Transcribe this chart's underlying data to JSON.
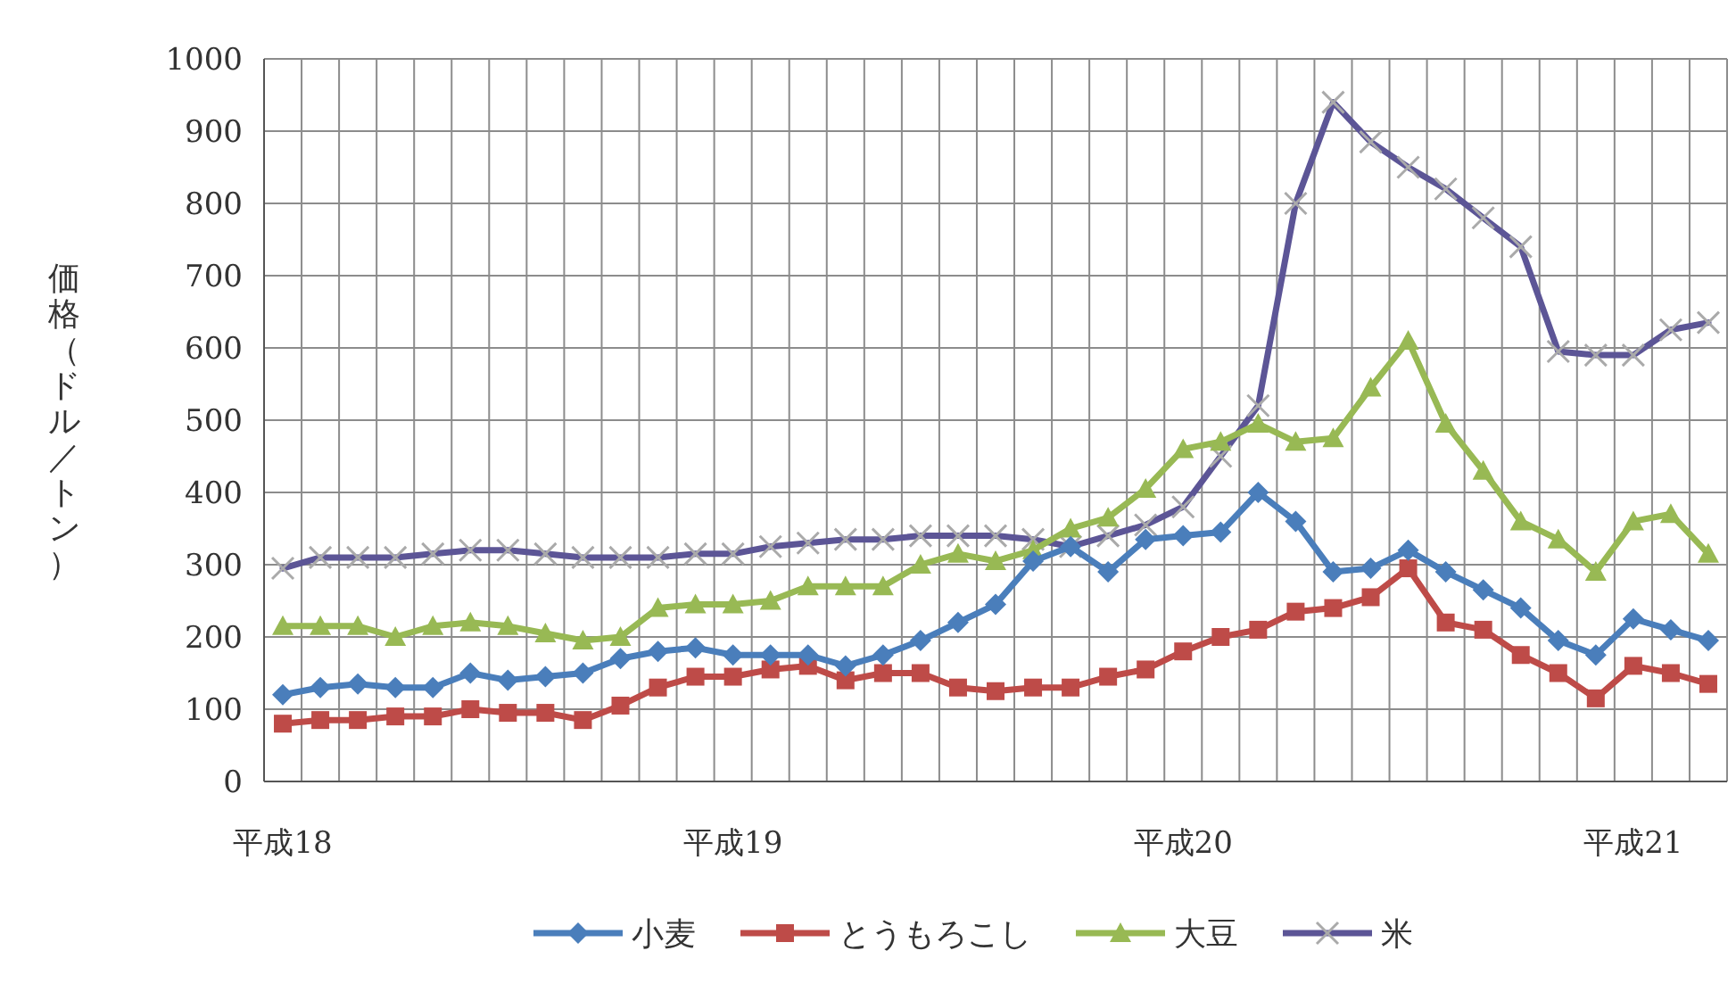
{
  "chart_data": {
    "type": "line",
    "ylabel": "価格（ドル／トン）",
    "categories": [
      "平成18",
      null,
      null,
      null,
      null,
      null,
      null,
      null,
      null,
      null,
      null,
      null,
      "平成19",
      null,
      null,
      null,
      null,
      null,
      null,
      null,
      null,
      null,
      null,
      null,
      "平成20",
      null,
      null,
      null,
      null,
      null,
      null,
      null,
      null,
      null,
      null,
      null,
      "平成21",
      null,
      null
    ],
    "ylim": [
      0,
      1000
    ],
    "yticks": [
      0,
      100,
      200,
      300,
      400,
      500,
      600,
      700,
      800,
      900,
      1000
    ],
    "grid": true,
    "legend": "bottom",
    "line_style": "solid",
    "series": [
      {
        "name": "小麦",
        "color": "#4a7ebb",
        "marker": "diamond",
        "values": [
          120,
          130,
          135,
          130,
          130,
          150,
          140,
          145,
          150,
          170,
          180,
          185,
          175,
          175,
          175,
          160,
          175,
          195,
          220,
          245,
          305,
          325,
          290,
          335,
          340,
          345,
          400,
          360,
          290,
          295,
          320,
          290,
          265,
          240,
          195,
          175,
          225,
          210,
          195
        ]
      },
      {
        "name": "とうもろこし",
        "color": "#be4b48",
        "marker": "square",
        "values": [
          80,
          85,
          85,
          90,
          90,
          100,
          95,
          95,
          85,
          105,
          130,
          145,
          145,
          155,
          160,
          140,
          150,
          150,
          130,
          125,
          130,
          130,
          145,
          155,
          180,
          200,
          210,
          235,
          240,
          255,
          295,
          220,
          210,
          175,
          150,
          115,
          160,
          150,
          135
        ]
      },
      {
        "name": "大豆",
        "color": "#98b954",
        "marker": "triangle",
        "values": [
          215,
          215,
          215,
          200,
          215,
          220,
          215,
          205,
          195,
          200,
          240,
          245,
          245,
          250,
          270,
          270,
          270,
          300,
          315,
          305,
          320,
          350,
          365,
          405,
          460,
          470,
          495,
          470,
          475,
          545,
          610,
          495,
          430,
          360,
          335,
          290,
          360,
          370,
          315
        ]
      },
      {
        "name": "米",
        "color": "#5c5596",
        "marker": "cross",
        "values": [
          295,
          310,
          310,
          310,
          315,
          320,
          320,
          315,
          310,
          310,
          310,
          315,
          315,
          325,
          330,
          335,
          335,
          340,
          340,
          340,
          335,
          325,
          340,
          355,
          380,
          450,
          520,
          800,
          940,
          885,
          850,
          820,
          780,
          740,
          595,
          590,
          590,
          625,
          635
        ]
      }
    ]
  }
}
